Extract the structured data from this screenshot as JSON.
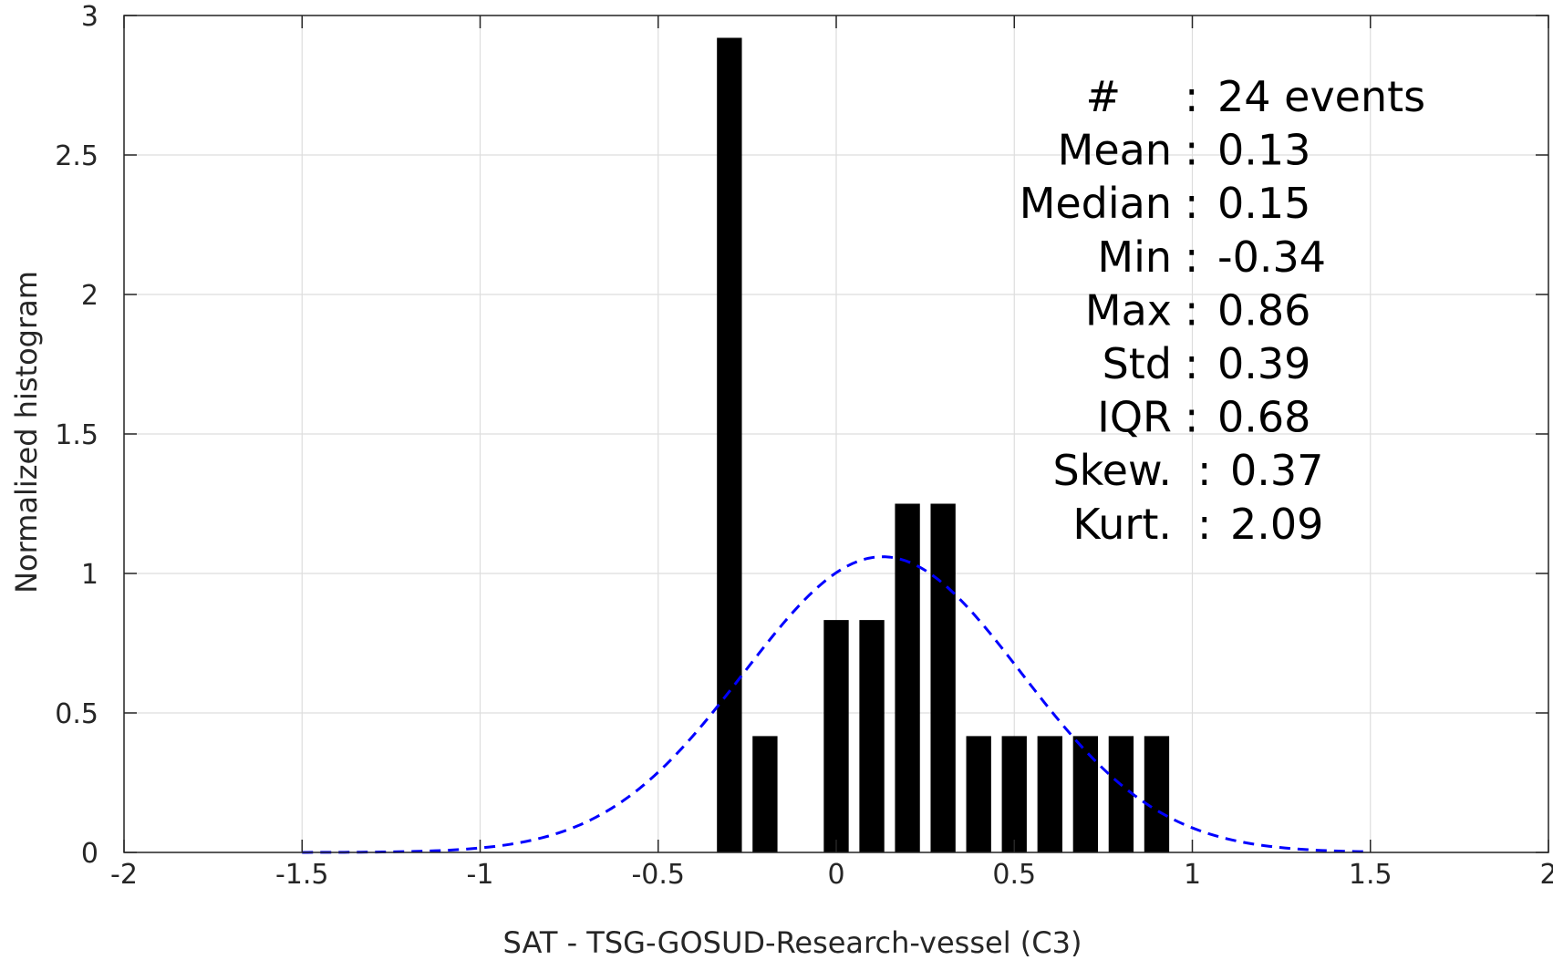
{
  "chart_data": {
    "type": "bar",
    "xlabel": "SAT - TSG-GOSUD-Research-vessel (C3)",
    "ylabel": "Normalized histogram",
    "xlim": [
      -2,
      2
    ],
    "ylim": [
      0,
      3
    ],
    "xticks": [
      "-2",
      "-1.5",
      "-1",
      "-0.5",
      "0",
      "0.5",
      "1",
      "1.5",
      "2"
    ],
    "yticks": [
      "0",
      "0.5",
      "1",
      "1.5",
      "2",
      "2.5",
      "3"
    ],
    "grid": true,
    "bar_width": 0.07,
    "bars": [
      {
        "x": -0.3,
        "y": 2.92
      },
      {
        "x": -0.2,
        "y": 0.417
      },
      {
        "x": 0.0,
        "y": 0.833
      },
      {
        "x": 0.1,
        "y": 0.833
      },
      {
        "x": 0.2,
        "y": 1.25
      },
      {
        "x": 0.3,
        "y": 1.25
      },
      {
        "x": 0.4,
        "y": 0.417
      },
      {
        "x": 0.5,
        "y": 0.417
      },
      {
        "x": 0.6,
        "y": 0.417
      },
      {
        "x": 0.7,
        "y": 0.417
      },
      {
        "x": 0.8,
        "y": 0.417
      },
      {
        "x": 0.9,
        "y": 0.417
      }
    ],
    "fit_curve": {
      "style": "dashed",
      "color": "#0000ff",
      "mean": 0.13,
      "std": 0.39,
      "peak": 1.06,
      "x_range": [
        -1.5,
        1.5
      ]
    },
    "bar_color": "#000000",
    "stats": [
      {
        "label": "#",
        "sep": ":",
        "value": "24 events"
      },
      {
        "label": "Mean",
        "sep": ":",
        "value": "0.13"
      },
      {
        "label": "Median",
        "sep": ":",
        "value": "0.15"
      },
      {
        "label": "Min",
        "sep": ":",
        "value": "-0.34"
      },
      {
        "label": "Max",
        "sep": ":",
        "value": "0.86"
      },
      {
        "label": "Std",
        "sep": ":",
        "value": "0.39"
      },
      {
        "label": "IQR",
        "sep": ":",
        "value": "0.68"
      },
      {
        "label": "Skew.",
        "sep": ":",
        "value": "0.37"
      },
      {
        "label": "Kurt.",
        "sep": ":",
        "value": "2.09"
      }
    ]
  }
}
